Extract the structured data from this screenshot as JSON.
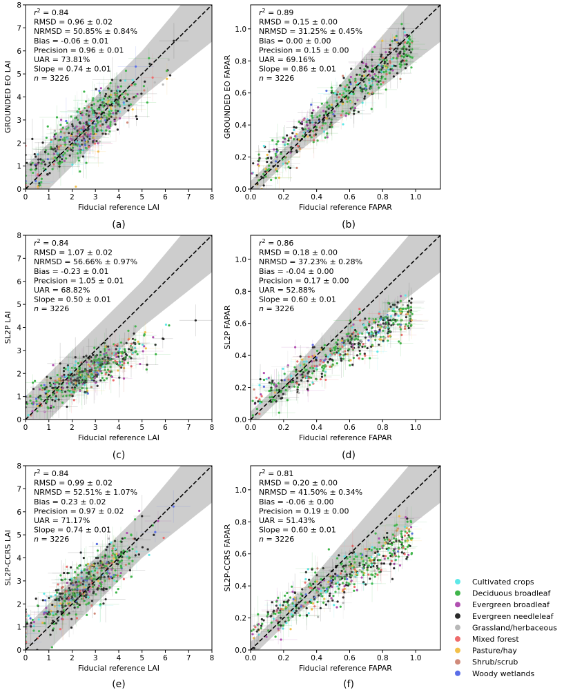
{
  "legend": {
    "entries": [
      {
        "label": "Cultivated crops",
        "color": "#5ee8e8"
      },
      {
        "label": "Deciduous broadleaf",
        "color": "#3fb54a"
      },
      {
        "label": "Evergreen broadleaf",
        "color": "#b04fb0"
      },
      {
        "label": "Evergreen needleleaf",
        "color": "#2a2a2a"
      },
      {
        "label": "Grassland/herbaceous",
        "color": "#b8b8b8"
      },
      {
        "label": "Mixed forest",
        "color": "#ee6b6b"
      },
      {
        "label": "Pasture/hay",
        "color": "#f2c04a"
      },
      {
        "label": "Shrub/scrub",
        "color": "#d08a7a"
      },
      {
        "label": "Woody wetlands",
        "color": "#5a6ee8"
      }
    ]
  },
  "chart_data": [
    {
      "type": "scatter",
      "panel_label": "(a)",
      "xlabel": "Fiducial reference LAI",
      "ylabel": "GROUNDED EO LAI",
      "xlim": [
        0,
        8
      ],
      "ylim": [
        0,
        8
      ],
      "xticks": [
        "0",
        "1",
        "2",
        "3",
        "4",
        "5",
        "6",
        "7",
        "8"
      ],
      "yticks": [
        "0",
        "1",
        "2",
        "3",
        "4",
        "5",
        "6",
        "7",
        "8"
      ],
      "stats": {
        "r2": "0.84",
        "rmsd": "0.96 ± 0.02",
        "nrmsd": "50.85% ± 0.84%",
        "bias": "-0.06 ± 0.01",
        "precision": "0.96 ± 0.01",
        "uar": "73.81%",
        "slope": "0.74 ± 0.01",
        "n": "3226"
      },
      "trend": {
        "slope": 0.74,
        "intercept": 0.69,
        "spread": 0.9
      },
      "uncertainty_band": "grey wedge: 20% uncertainty requirement around 1:1",
      "one_to_one": true
    },
    {
      "type": "scatter",
      "panel_label": "(b)",
      "xlabel": "Fiducial reference FAPAR",
      "ylabel": "GROUNDED EO FAPAR",
      "xlim": [
        0,
        1.15
      ],
      "ylim": [
        0,
        1.15
      ],
      "xticks": [
        "0.0",
        "0.2",
        "0.4",
        "0.6",
        "0.8",
        "1.0"
      ],
      "yticks": [
        "0.0",
        "0.2",
        "0.4",
        "0.6",
        "0.8",
        "1.0"
      ],
      "stats": {
        "r2": "0.89",
        "rmsd": "0.15 ± 0.00",
        "nrmsd": "31.25% ± 0.45%",
        "bias": "0.00 ± 0.00",
        "precision": "0.15 ± 0.00",
        "uar": "69.16%",
        "slope": "0.86 ± 0.01",
        "n": "3226"
      },
      "trend": {
        "slope": 0.86,
        "intercept": 0.07,
        "spread": 0.12
      },
      "one_to_one": true
    },
    {
      "type": "scatter",
      "panel_label": "(c)",
      "xlabel": "Fiducial reference LAI",
      "ylabel": "SL2P LAI",
      "xlim": [
        0,
        8
      ],
      "ylim": [
        0,
        8
      ],
      "xticks": [
        "0",
        "1",
        "2",
        "3",
        "4",
        "5",
        "6",
        "7",
        "8"
      ],
      "yticks": [
        "0",
        "1",
        "2",
        "3",
        "4",
        "5",
        "6",
        "7",
        "8"
      ],
      "stats": {
        "r2": "0.84",
        "rmsd": "1.07 ± 0.02",
        "nrmsd": "56.66% ± 0.97%",
        "bias": "-0.23 ± 0.01",
        "precision": "1.05 ± 0.01",
        "uar": "68.82%",
        "slope": "0.50 ± 0.01",
        "n": "3226"
      },
      "trend": {
        "slope": 0.5,
        "intercept": 0.7,
        "spread": 0.65
      },
      "one_to_one": true
    },
    {
      "type": "scatter",
      "panel_label": "(d)",
      "xlabel": "Fiducial reference FAPAR",
      "ylabel": "SL2P FAPAR",
      "xlim": [
        0,
        1.15
      ],
      "ylim": [
        0,
        1.15
      ],
      "xticks": [
        "0.0",
        "0.2",
        "0.4",
        "0.6",
        "0.8",
        "1.0"
      ],
      "yticks": [
        "0.0",
        "0.2",
        "0.4",
        "0.6",
        "0.8",
        "1.0"
      ],
      "stats": {
        "r2": "0.86",
        "rmsd": "0.18 ± 0.00",
        "nrmsd": "37.23% ± 0.28%",
        "bias": "-0.04 ± 0.00",
        "precision": "0.17 ± 0.00",
        "uar": "52.88%",
        "slope": "0.60 ± 0.01",
        "n": "3226"
      },
      "trend": {
        "slope": 0.6,
        "intercept": 0.1,
        "spread": 0.1
      },
      "one_to_one": true
    },
    {
      "type": "scatter",
      "panel_label": "(e)",
      "xlabel": "Fiducial reference LAI",
      "ylabel": "SL2P-CCRS LAI",
      "xlim": [
        0,
        8
      ],
      "ylim": [
        0,
        8
      ],
      "xticks": [
        "0",
        "1",
        "2",
        "3",
        "4",
        "5",
        "6",
        "7",
        "8"
      ],
      "yticks": [
        "0",
        "1",
        "2",
        "3",
        "4",
        "5",
        "6",
        "7",
        "8"
      ],
      "stats": {
        "r2": "0.84",
        "rmsd": "0.99 ± 0.02",
        "nrmsd": "52.51% ± 1.07%",
        "bias": "0.23 ± 0.02",
        "precision": "0.97 ± 0.02",
        "uar": "71.17%",
        "slope": "0.74 ± 0.01",
        "n": "3226"
      },
      "trend": {
        "slope": 0.74,
        "intercept": 0.9,
        "spread": 0.9
      },
      "one_to_one": true
    },
    {
      "type": "scatter",
      "panel_label": "(f)",
      "xlabel": "Fiducial reference FAPAR",
      "ylabel": "SL2P-CCRS FAPAR",
      "xlim": [
        0,
        1.15
      ],
      "ylim": [
        0,
        1.15
      ],
      "xticks": [
        "0.0",
        "0.2",
        "0.4",
        "0.6",
        "0.8",
        "1.0"
      ],
      "yticks": [
        "0.0",
        "0.2",
        "0.4",
        "0.6",
        "0.8",
        "1.0"
      ],
      "stats": {
        "r2": "0.81",
        "rmsd": "0.20 ± 0.00",
        "nrmsd": "41.50% ± 0.34%",
        "bias": "-0.06 ± 0.00",
        "precision": "0.19 ± 0.00",
        "uar": "51.43%",
        "slope": "0.60 ± 0.01",
        "n": "3226"
      },
      "trend": {
        "slope": 0.6,
        "intercept": 0.12,
        "spread": 0.11
      },
      "one_to_one": true
    }
  ]
}
